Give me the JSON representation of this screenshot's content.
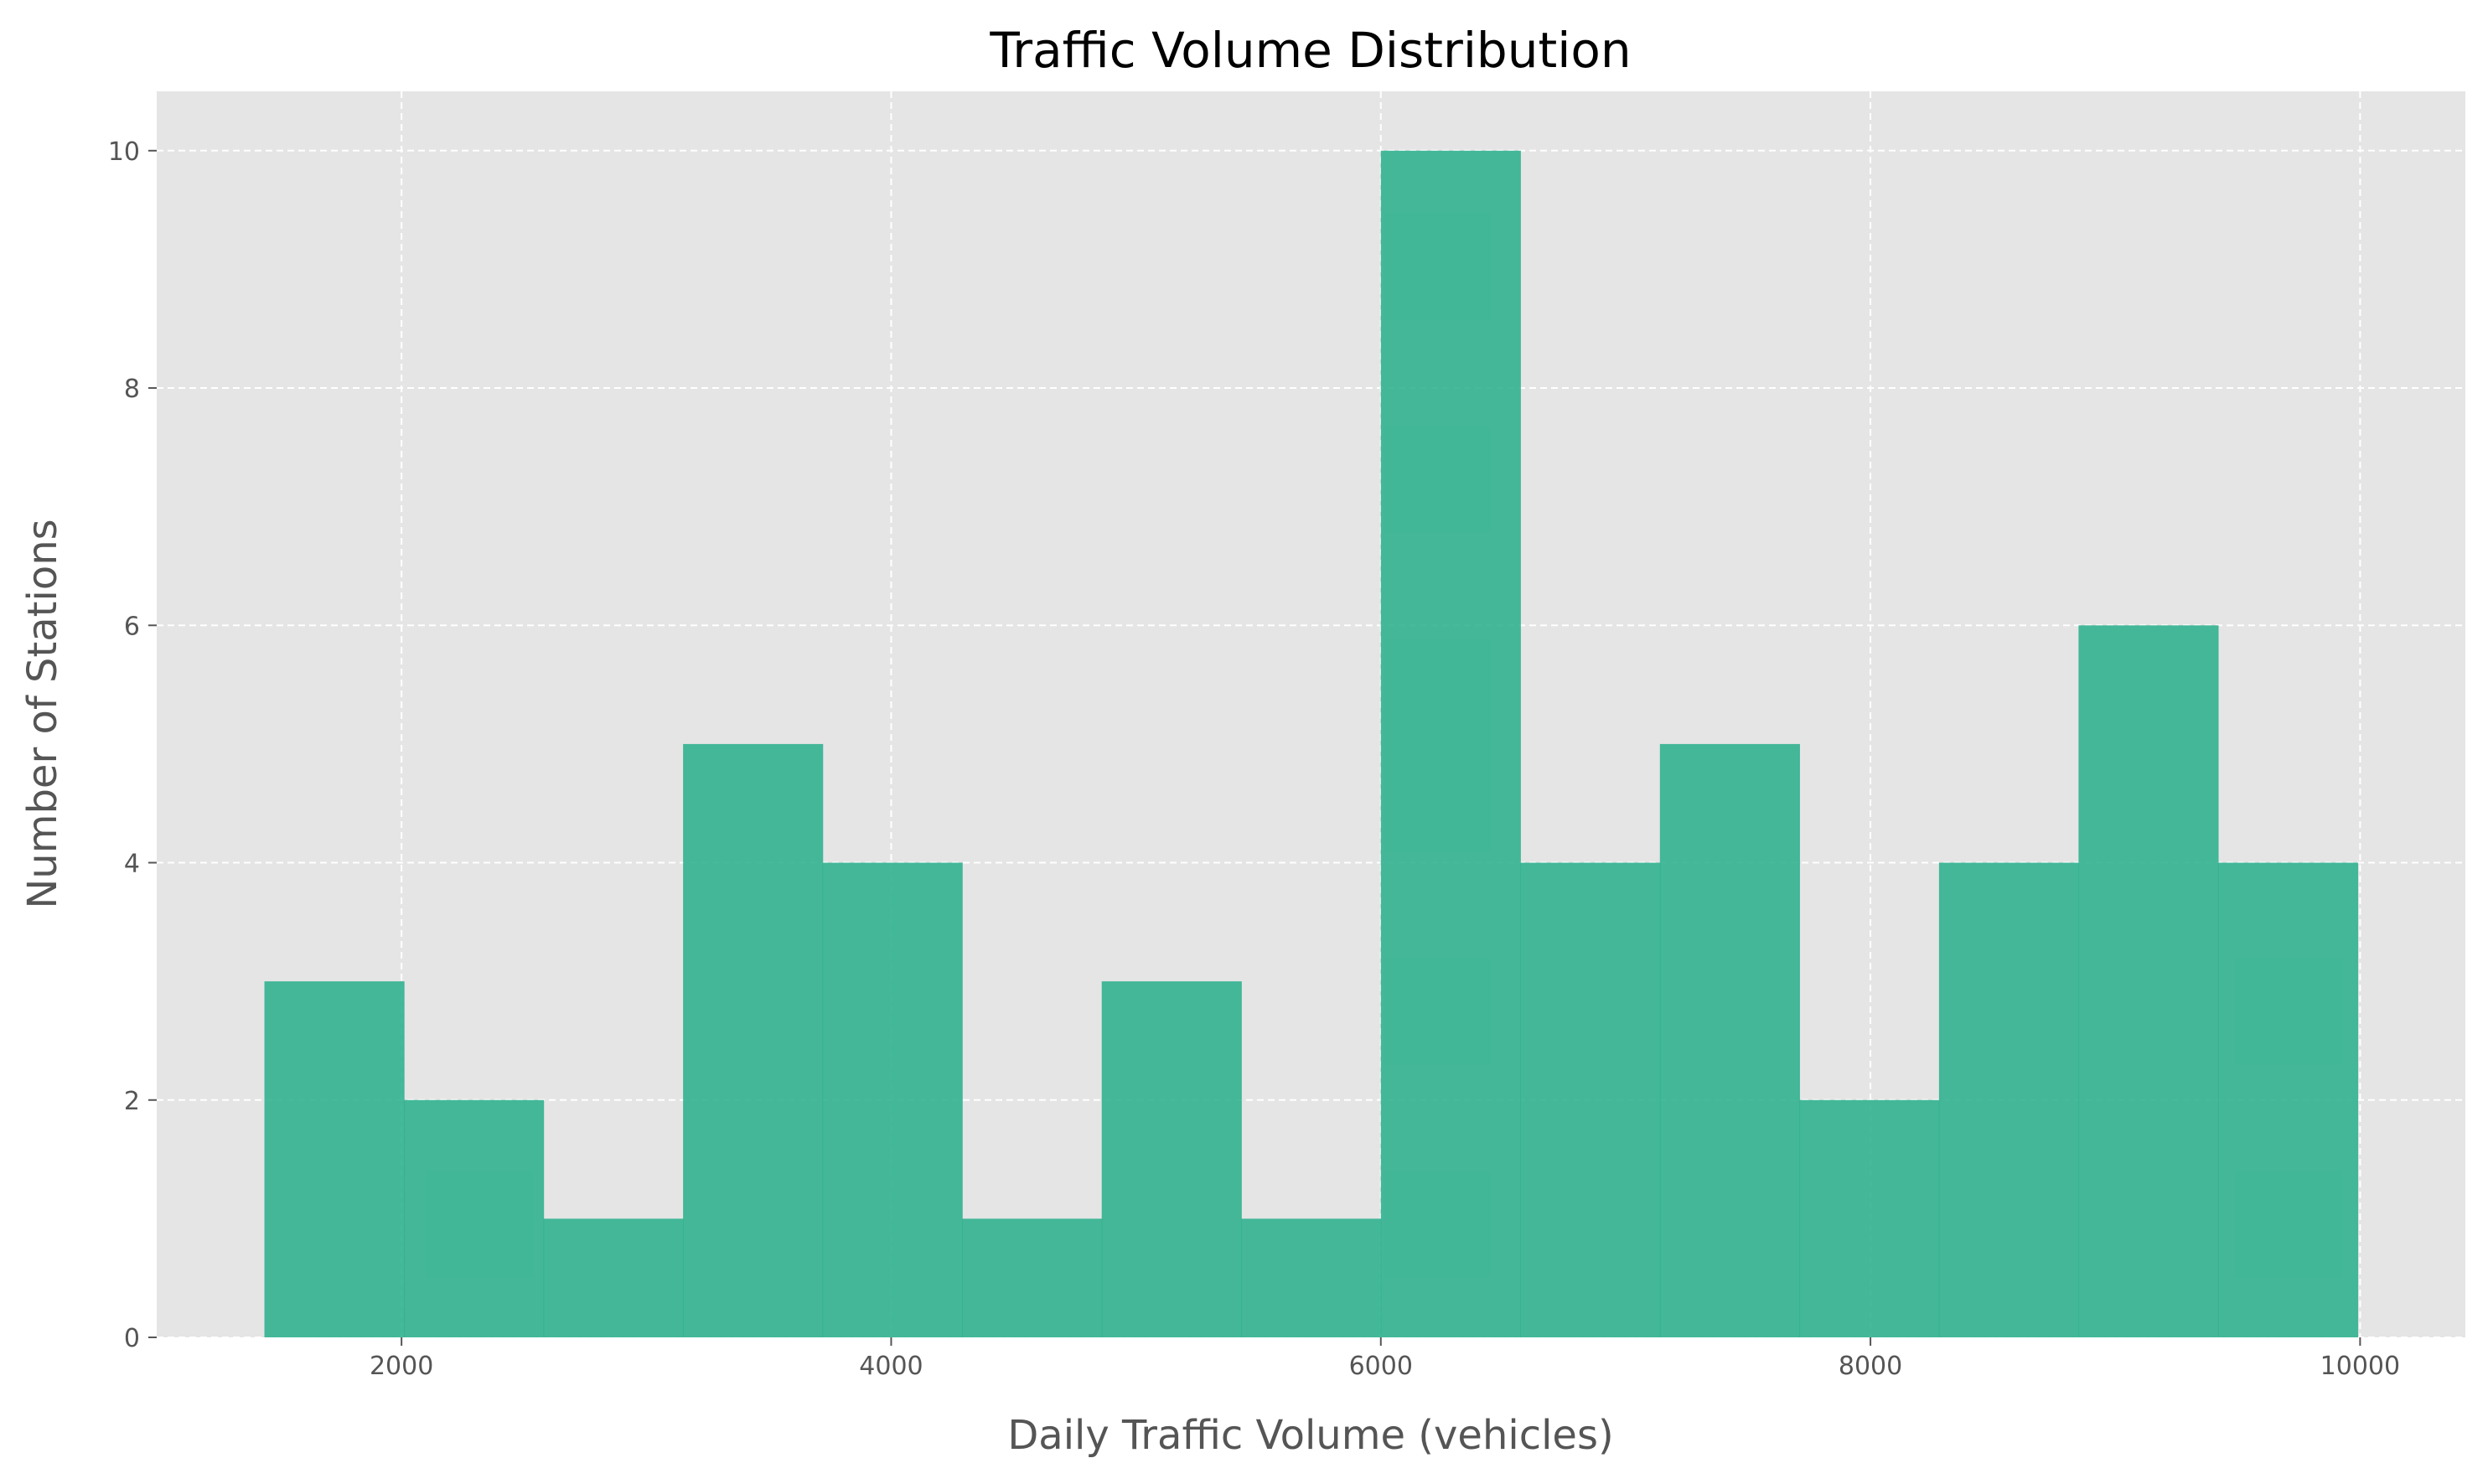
{
  "chart_data": {
    "type": "bar",
    "title": "Traffic Volume Distribution",
    "xlabel": "Daily Traffic Volume (vehicles)",
    "ylabel": "Number of Stations",
    "bin_edges": [
      1440,
      2010,
      2580,
      3150,
      3720,
      4290,
      4860,
      5430,
      6000,
      6570,
      7140,
      7710,
      8280,
      8850,
      9420,
      9990
    ],
    "counts": [
      3,
      2,
      1,
      5,
      4,
      1,
      3,
      1,
      10,
      4,
      5,
      2,
      4,
      6,
      4
    ],
    "xlim": [
      1000,
      10430
    ],
    "ylim": [
      0,
      10.5
    ],
    "x_ticks": [
      2000,
      4000,
      6000,
      8000,
      10000
    ],
    "y_ticks": [
      0,
      2,
      4,
      6,
      8,
      10
    ],
    "grid": true,
    "bar_color": "#2ab08c",
    "background_color": "#e5e5e5"
  }
}
